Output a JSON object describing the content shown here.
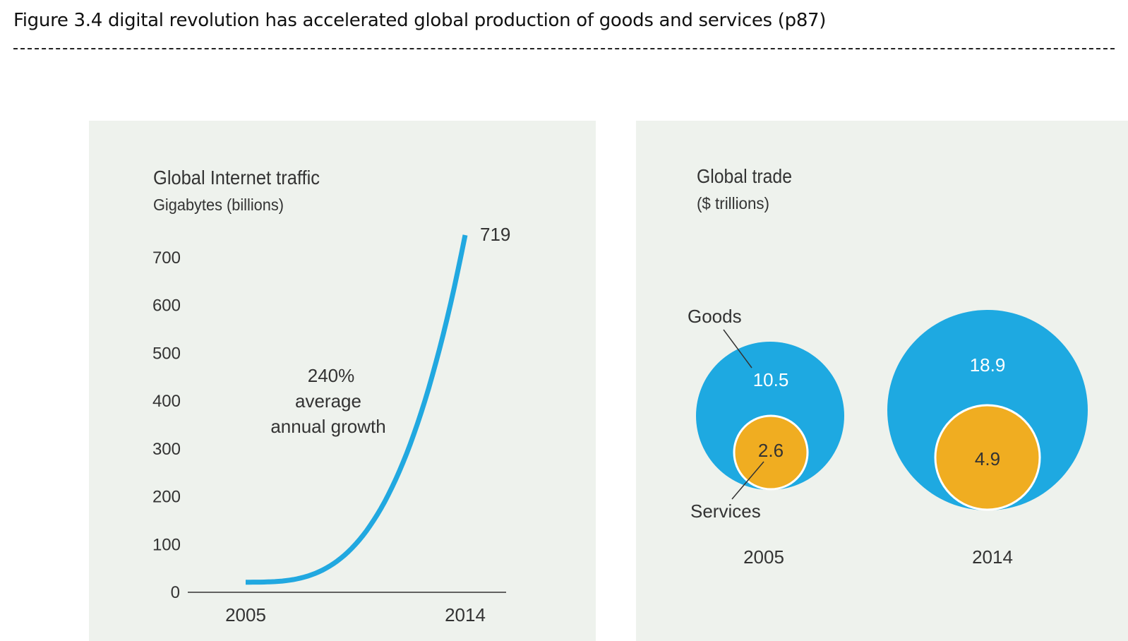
{
  "figure": {
    "title": "Figure 3.4 digital revolution has accelerated global production of goods and services (p87)",
    "rule": "--------------------------------------------------------------------------------------------------------------------------------------------------------------------------------------------------------------------------------"
  },
  "colors": {
    "panel_bg": "#eef2ed",
    "line_blue": "#21a8e0",
    "goods_blue": "#1ea9e1",
    "services_orange": "#f0ad21",
    "text": "#333333"
  },
  "chart_data": [
    {
      "type": "line",
      "title": "Global Internet traffic",
      "subtitle": "Gigabytes (billions)",
      "ylim": [
        0,
        719
      ],
      "yticks": [
        0,
        100,
        200,
        300,
        400,
        500,
        600,
        700
      ],
      "xticks": [
        "2005",
        "2014"
      ],
      "series": [
        {
          "x": [
            2005,
            2014
          ],
          "values": [
            12,
            719
          ],
          "growth": "exponential"
        }
      ],
      "end_label": "719",
      "annotation": [
        "240%",
        "average",
        "annual growth"
      ],
      "grid": false
    },
    {
      "type": "bubble",
      "title": "Global trade",
      "subtitle": "($ trillions)",
      "categories": [
        "2005",
        "2014"
      ],
      "series": [
        {
          "name": "Goods",
          "values": [
            10.5,
            18.9
          ]
        },
        {
          "name": "Services",
          "values": [
            2.6,
            4.9
          ]
        }
      ],
      "value_labels": {
        "goods": [
          "10.5",
          "18.9"
        ],
        "services": [
          "2.6",
          "4.9"
        ]
      }
    }
  ]
}
